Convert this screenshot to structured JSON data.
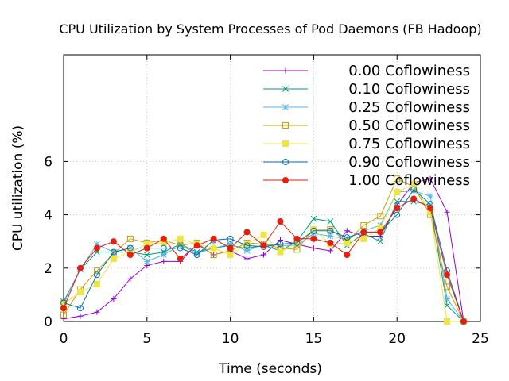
{
  "chart_data": {
    "type": "line",
    "title": "CPU Utilization by System Processes of Pod Daemons (FB Hadoop)",
    "xlabel": "Time (seconds)",
    "ylabel": "CPU utilization (%)",
    "xlim": [
      0,
      25
    ],
    "ylim": [
      0,
      10
    ],
    "xticks": [
      0,
      5,
      10,
      15,
      20,
      25
    ],
    "yticks": [
      0,
      2,
      4,
      6
    ],
    "grid": true,
    "legend": "top-right",
    "x": [
      0,
      1,
      2,
      3,
      4,
      5,
      6,
      7,
      8,
      9,
      10,
      11,
      12,
      13,
      14,
      15,
      16,
      17,
      18,
      19,
      20,
      21,
      22,
      23,
      24
    ],
    "series": [
      {
        "name": "0.00 Coflowiness",
        "color": "#9400d3",
        "marker": "plus",
        "values": [
          0.1,
          0.2,
          0.35,
          0.85,
          1.6,
          2.1,
          2.25,
          2.25,
          2.9,
          2.5,
          2.65,
          2.35,
          2.5,
          3.05,
          2.9,
          2.75,
          2.65,
          3.4,
          3.2,
          3.2,
          4.35,
          5.2,
          5.35,
          4.1,
          0.0
        ]
      },
      {
        "name": "0.10 Coflowiness",
        "color": "#009e73",
        "marker": "x",
        "values": [
          0.75,
          1.95,
          2.6,
          2.6,
          2.6,
          2.5,
          2.6,
          2.9,
          2.6,
          2.75,
          2.85,
          2.75,
          2.85,
          2.65,
          3.0,
          3.85,
          3.75,
          2.85,
          3.3,
          3.0,
          4.5,
          4.5,
          4.35,
          0.6,
          0.0
        ]
      },
      {
        "name": "0.25 Coflowiness",
        "color": "#56b4e9",
        "marker": "star",
        "values": [
          0.7,
          1.95,
          2.9,
          2.6,
          2.75,
          2.25,
          2.5,
          2.85,
          2.55,
          2.75,
          2.9,
          2.65,
          2.9,
          2.85,
          2.85,
          3.3,
          3.2,
          3.1,
          3.4,
          3.6,
          4.85,
          4.9,
          4.7,
          0.85,
          0.0
        ]
      },
      {
        "name": "0.50 Coflowiness",
        "color": "#c8a000",
        "marker": "square",
        "values": [
          0.25,
          1.2,
          1.9,
          2.55,
          3.1,
          2.95,
          3.05,
          2.85,
          2.95,
          2.5,
          2.65,
          2.95,
          2.9,
          2.75,
          2.7,
          3.45,
          3.45,
          3.0,
          3.6,
          3.95,
          5.35,
          5.05,
          4.0,
          1.3,
          0.0
        ]
      },
      {
        "name": "0.75 Coflowiness",
        "color": "#f0e442",
        "marker": "filled-square",
        "values": [
          0.65,
          1.1,
          1.4,
          2.35,
          2.6,
          2.9,
          2.95,
          3.1,
          2.9,
          2.75,
          2.5,
          2.9,
          3.25,
          2.6,
          2.95,
          3.45,
          2.9,
          2.95,
          3.1,
          3.5,
          4.85,
          5.15,
          4.1,
          0.0,
          0.0
        ]
      },
      {
        "name": "0.90 Coflowiness",
        "color": "#0072b2",
        "marker": "circle",
        "values": [
          0.7,
          0.5,
          1.75,
          2.6,
          2.75,
          2.75,
          2.75,
          2.75,
          2.5,
          3.05,
          3.1,
          2.85,
          2.8,
          2.9,
          2.95,
          3.4,
          3.4,
          3.15,
          3.35,
          3.35,
          4.0,
          4.95,
          4.4,
          1.9,
          0.0
        ]
      },
      {
        "name": "1.00 Coflowiness",
        "color": "#e51e10",
        "marker": "filled-circle",
        "values": [
          0.5,
          2.0,
          2.75,
          3.0,
          2.5,
          2.75,
          3.1,
          2.35,
          2.85,
          3.1,
          2.75,
          3.35,
          2.85,
          3.75,
          3.1,
          3.1,
          2.95,
          2.5,
          3.35,
          3.35,
          4.25,
          4.6,
          4.25,
          1.75,
          0.0
        ]
      }
    ]
  }
}
